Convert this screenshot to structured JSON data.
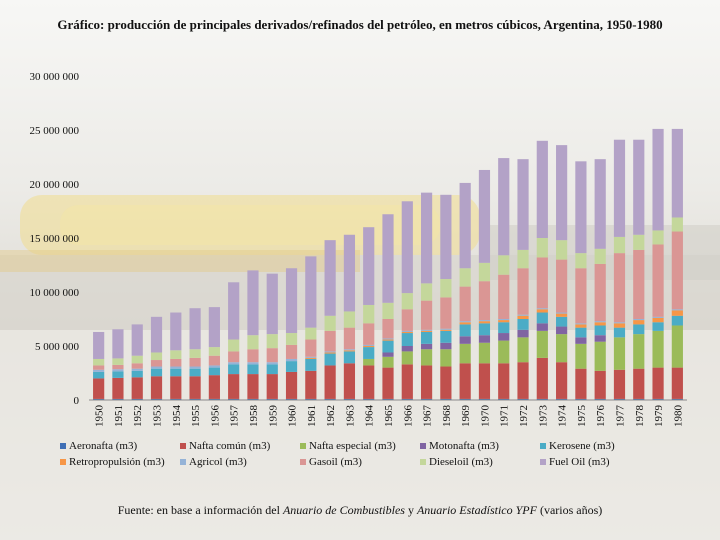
{
  "chart_data": {
    "type": "bar",
    "stacked": true,
    "title": "Gráfico: producción de principales derivados/refinados del petróleo, en metros cúbicos, Argentina, 1950-1980",
    "xlabel": "",
    "ylabel": "",
    "ylim": [
      0,
      30000000
    ],
    "yticks": [
      0,
      5000000,
      10000000,
      15000000,
      20000000,
      25000000,
      30000000
    ],
    "ytick_labels": [
      "0",
      "5 000 000",
      "10 000 000",
      "15 000 000",
      "20 000 000",
      "25 000 000",
      "30 000 000"
    ],
    "grid": false,
    "legend_position": "bottom",
    "categories": [
      "1950",
      "1951",
      "1952",
      "1953",
      "1954",
      "1955",
      "1956",
      "1957",
      "1958",
      "1959",
      "1960",
      "1961",
      "1962",
      "1963",
      "1964",
      "1965",
      "1966",
      "1967",
      "1968",
      "1969",
      "1970",
      "1971",
      "1972",
      "1973",
      "1974",
      "1975",
      "1976",
      "1977",
      "1978",
      "1979",
      "1980"
    ],
    "series": [
      {
        "name": "Aeronafta (m3)",
        "color": "#3f6fb5",
        "values": [
          100000,
          100000,
          100000,
          100000,
          100000,
          100000,
          100000,
          100000,
          100000,
          100000,
          100000,
          100000,
          100000,
          100000,
          100000,
          100000,
          100000,
          100000,
          100000,
          100000,
          100000,
          100000,
          100000,
          100000,
          100000,
          100000,
          100000,
          100000,
          100000,
          100000,
          100000
        ]
      },
      {
        "name": "Nafta común (m3)",
        "color": "#c0504d",
        "values": [
          1900000,
          1950000,
          2000000,
          2100000,
          2100000,
          2100000,
          2200000,
          2300000,
          2300000,
          2300000,
          2500000,
          2600000,
          3100000,
          3300000,
          3100000,
          2900000,
          3200000,
          3100000,
          3000000,
          3300000,
          3300000,
          3300000,
          3400000,
          3800000,
          3400000,
          2800000,
          2600000,
          2700000,
          2800000,
          2900000,
          2900000
        ]
      },
      {
        "name": "Nafta especial (m3)",
        "color": "#9bbb59",
        "values": [
          0,
          0,
          0,
          0,
          0,
          0,
          0,
          0,
          0,
          0,
          0,
          0,
          0,
          0,
          600000,
          1000000,
          1200000,
          1500000,
          1600000,
          1800000,
          1900000,
          2100000,
          2300000,
          2500000,
          2600000,
          2300000,
          2700000,
          3000000,
          3200000,
          3400000,
          3900000
        ]
      },
      {
        "name": "Motonafta (m3)",
        "color": "#8064a2",
        "values": [
          0,
          0,
          0,
          0,
          0,
          0,
          0,
          0,
          0,
          0,
          0,
          0,
          0,
          0,
          0,
          400000,
          500000,
          500000,
          600000,
          700000,
          700000,
          700000,
          700000,
          700000,
          700000,
          600000,
          600000,
          0,
          0,
          0,
          0
        ]
      },
      {
        "name": "Kerosene (m3)",
        "color": "#4bacc6",
        "values": [
          600000,
          600000,
          600000,
          700000,
          700000,
          700000,
          700000,
          900000,
          900000,
          900000,
          1000000,
          1100000,
          1100000,
          1100000,
          1100000,
          1100000,
          1200000,
          1100000,
          1100000,
          1100000,
          1100000,
          1000000,
          1000000,
          1000000,
          900000,
          900000,
          900000,
          900000,
          900000,
          800000,
          900000
        ]
      },
      {
        "name": "Retropropulsión (m3)",
        "color": "#f79646",
        "values": [
          0,
          0,
          0,
          0,
          0,
          0,
          0,
          0,
          0,
          0,
          0,
          100000,
          100000,
          100000,
          100000,
          100000,
          100000,
          100000,
          100000,
          200000,
          200000,
          200000,
          300000,
          300000,
          300000,
          300000,
          300000,
          400000,
          400000,
          400000,
          500000
        ]
      },
      {
        "name": "Agricol (m3)",
        "color": "#95b3d7",
        "values": [
          200000,
          200000,
          200000,
          200000,
          200000,
          200000,
          200000,
          200000,
          200000,
          200000,
          200000,
          100000,
          100000,
          100000,
          100000,
          100000,
          100000,
          100000,
          100000,
          100000,
          100000,
          100000,
          100000,
          100000,
          100000,
          100000,
          100000,
          100000,
          100000,
          100000,
          100000
        ]
      },
      {
        "name": "Gasoil (m3)",
        "color": "#da9694",
        "values": [
          400000,
          400000,
          500000,
          600000,
          700000,
          800000,
          900000,
          1000000,
          1200000,
          1300000,
          1300000,
          1600000,
          1900000,
          2000000,
          2000000,
          1800000,
          2000000,
          2700000,
          2900000,
          3200000,
          3600000,
          4100000,
          4300000,
          4700000,
          4900000,
          5100000,
          5300000,
          6400000,
          6400000,
          6700000,
          7200000
        ]
      },
      {
        "name": "Dieseloil (m3)",
        "color": "#c4d79b",
        "values": [
          600000,
          600000,
          700000,
          700000,
          800000,
          800000,
          800000,
          1100000,
          1300000,
          1300000,
          1100000,
          1100000,
          1400000,
          1500000,
          1700000,
          1500000,
          1500000,
          1600000,
          1700000,
          1700000,
          1700000,
          1800000,
          1700000,
          1800000,
          1800000,
          1400000,
          1400000,
          1500000,
          1400000,
          1300000,
          1300000
        ]
      },
      {
        "name": "Fuel Oil (m3)",
        "color": "#b3a2c7",
        "values": [
          2500000,
          2700000,
          2900000,
          3300000,
          3500000,
          3800000,
          3700000,
          5300000,
          6000000,
          5600000,
          6000000,
          6600000,
          7000000,
          7100000,
          7200000,
          8200000,
          8500000,
          8400000,
          7800000,
          7900000,
          8600000,
          9000000,
          8400000,
          9000000,
          8800000,
          8500000,
          8300000,
          9000000,
          8800000,
          9400000,
          8200000
        ]
      }
    ]
  },
  "source": {
    "prefix": "Fuente: en base a información del ",
    "source_1": "Anuario de Combustibles",
    "conjunction": " y ",
    "source_2": "Anuario Estadístico YPF",
    "suffix": " (varios años)"
  }
}
